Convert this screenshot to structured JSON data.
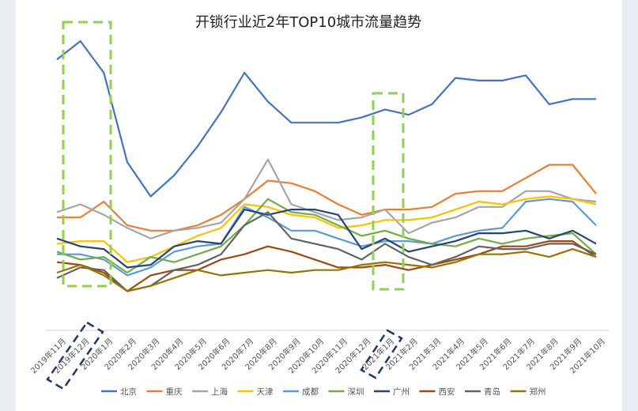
{
  "chart_data": {
    "type": "line",
    "title": "开锁行业近2年TOP10城市流量趋势",
    "categories": [
      "2019年11月",
      "2019年12月",
      "2020年1月",
      "2020年2月",
      "2020年3月",
      "2020年4月",
      "2020年5月",
      "2020年6月",
      "2020年7月",
      "2020年8月",
      "2020年9月",
      "2020年10月",
      "2020年11月",
      "2020年12月",
      "2021年1月",
      "2021年2月",
      "2021年3月",
      "2021年4月",
      "2021年5月",
      "2021年6月",
      "2021年7月",
      "2021年8月",
      "2021年9月",
      "2021年10月"
    ],
    "ylim": [
      0,
      100
    ],
    "grid": false,
    "legend": "bottom",
    "series": [
      {
        "name": "北京",
        "color": "#4472C4",
        "values": [
          93,
          100,
          88,
          54,
          41,
          49,
          60,
          73,
          88,
          77,
          69,
          69,
          69,
          71,
          74,
          72,
          76,
          86,
          85,
          85,
          87,
          76,
          78,
          78
        ]
      },
      {
        "name": "重庆",
        "color": "#ED7D31",
        "values": [
          33,
          33,
          39,
          30,
          28,
          28,
          30,
          34,
          40,
          47,
          46,
          43,
          38,
          34,
          36,
          36,
          37,
          42,
          43,
          43,
          48,
          53,
          53,
          42
        ]
      },
      {
        "name": "上海",
        "color": "#A5A5A5",
        "values": [
          35,
          38,
          34,
          29,
          25,
          28,
          29,
          31,
          40,
          55,
          38,
          35,
          32,
          33,
          36,
          27,
          31,
          33,
          37,
          37,
          43,
          43,
          40,
          39
        ]
      },
      {
        "name": "天津",
        "color": "#FFC000",
        "values": [
          23,
          24,
          24,
          16,
          18,
          22,
          26,
          29,
          38,
          37,
          34,
          33,
          29,
          30,
          32,
          32,
          33,
          36,
          39,
          38,
          40,
          41,
          40,
          38
        ]
      },
      {
        "name": "成都",
        "color": "#5B9BD5",
        "values": [
          19,
          19,
          17,
          11,
          14,
          20,
          22,
          23,
          37,
          33,
          28,
          28,
          25,
          22,
          24,
          24,
          23,
          26,
          28,
          29,
          39,
          40,
          39,
          30
        ]
      },
      {
        "name": "深圳",
        "color": "#70AD47",
        "values": [
          20,
          17,
          18,
          12,
          18,
          16,
          19,
          22,
          30,
          40,
          35,
          34,
          30,
          26,
          28,
          25,
          23,
          22,
          25,
          23,
          25,
          26,
          27,
          19
        ]
      },
      {
        "name": "广州",
        "color": "#264478",
        "values": [
          25,
          22,
          21,
          14,
          15,
          22,
          24,
          23,
          36,
          34,
          36,
          36,
          34,
          21,
          25,
          20,
          22,
          24,
          27,
          27,
          28,
          25,
          28,
          23
        ]
      },
      {
        "name": "西安",
        "color": "#9E480E",
        "values": [
          16,
          15,
          12,
          5,
          11,
          13,
          13,
          17,
          19,
          22,
          20,
          17,
          14,
          14,
          15,
          13,
          15,
          17,
          19,
          22,
          22,
          24,
          24,
          18
        ]
      },
      {
        "name": "青岛",
        "color": "#636363",
        "values": [
          10,
          14,
          13,
          5,
          7,
          13,
          15,
          19,
          30,
          35,
          25,
          23,
          21,
          17,
          23,
          18,
          15,
          18,
          22,
          21,
          21,
          23,
          23,
          19
        ]
      },
      {
        "name": "郑州",
        "color": "#997300",
        "values": [
          12,
          15,
          11,
          5,
          7,
          10,
          13,
          11,
          12,
          13,
          12,
          13,
          13,
          15,
          16,
          15,
          14,
          16,
          19,
          19,
          20,
          18,
          21,
          18
        ]
      }
    ]
  }
}
